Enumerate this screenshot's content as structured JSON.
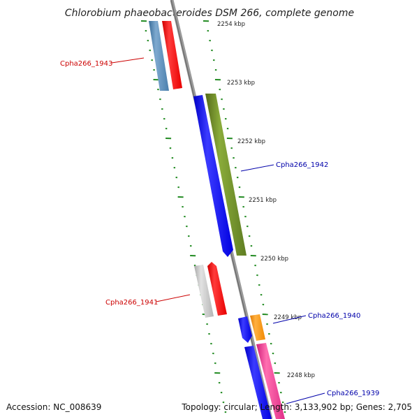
{
  "title": "Chlorobium phaeobacteroides DSM 266, complete genome",
  "footer": {
    "accession": "Accession: NC_008639",
    "summary": "Topology: circular; Length: 3,133,902 bp; Genes: 2,705"
  },
  "ticks": [
    "2254 kbp",
    "2253 kbp",
    "2252 kbp",
    "2251 kbp",
    "2250 kbp",
    "2249 kbp",
    "2248 kbp"
  ],
  "genes": [
    {
      "label": "Cpha266_1943",
      "strand": "reverse",
      "label_color": "#cc0000"
    },
    {
      "label": "Cpha266_1942",
      "strand": "forward",
      "label_color": "#0000aa"
    },
    {
      "label": "Cpha266_1941",
      "strand": "reverse",
      "label_color": "#cc0000"
    },
    {
      "label": "Cpha266_1940",
      "strand": "forward",
      "label_color": "#0000aa"
    },
    {
      "label": "Cpha266_1939",
      "strand": "forward",
      "label_color": "#0000aa"
    }
  ],
  "colors": {
    "backbone": "#888888",
    "ruler": "#228b22",
    "forward_cds": "#0000ff",
    "reverse_cds": "#ff0000",
    "green_feature": "#6b8e23",
    "steelblue_feature": "#4682b4",
    "gray_feature": "#bbbbbb",
    "orange_feature": "#ff8c00",
    "pink_feature": "#e8338f"
  }
}
